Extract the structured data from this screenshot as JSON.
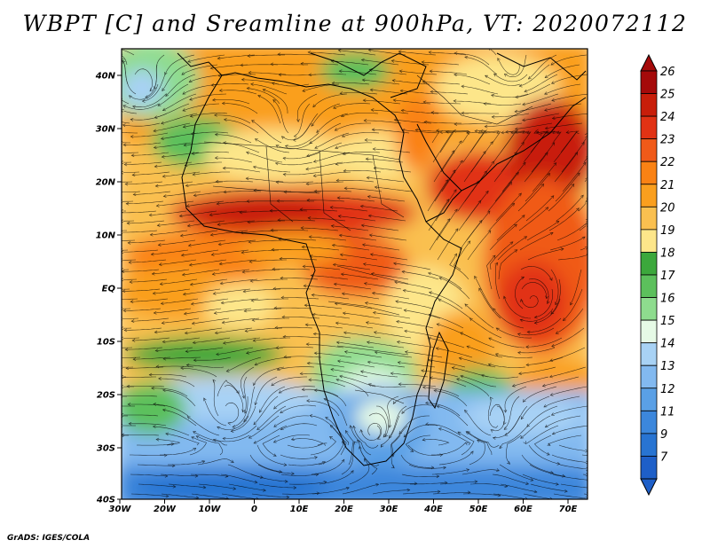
{
  "title": "WBPT [C] and Sreamline at 900hPa, VT: 2020072112",
  "credit": "GrADS: IGES/COLA",
  "map": {
    "lon_ticks": [
      "30W",
      "20W",
      "10W",
      "0",
      "10E",
      "20E",
      "30E",
      "40E",
      "50E",
      "60E",
      "70E"
    ],
    "lat_ticks": [
      "40N",
      "30N",
      "20N",
      "10N",
      "EQ",
      "10S",
      "20S",
      "30S",
      "40S"
    ]
  },
  "colorbar": {
    "levels": [
      {
        "label": "26",
        "color": "#a50a0a"
      },
      {
        "label": "25",
        "color": "#c81e0a"
      },
      {
        "label": "24",
        "color": "#e13214"
      },
      {
        "label": "23",
        "color": "#f05a19"
      },
      {
        "label": "22",
        "color": "#fa8214"
      },
      {
        "label": "21",
        "color": "#fa9f1e"
      },
      {
        "label": "20",
        "color": "#fac050"
      },
      {
        "label": "19",
        "color": "#fde68a"
      },
      {
        "label": "18",
        "color": "#3ca83c"
      },
      {
        "label": "17",
        "color": "#5cc05c"
      },
      {
        "label": "16",
        "color": "#8edc8e"
      },
      {
        "label": "15",
        "color": "#e6fae6"
      },
      {
        "label": "14",
        "color": "#a8d2f5"
      },
      {
        "label": "13",
        "color": "#82b9f0"
      },
      {
        "label": "12",
        "color": "#5aa0e6"
      },
      {
        "label": "11",
        "color": "#3c87dc"
      },
      {
        "label": "9",
        "color": "#2874d2"
      },
      {
        "label": "7",
        "color": "#1e5fc8"
      }
    ]
  }
}
